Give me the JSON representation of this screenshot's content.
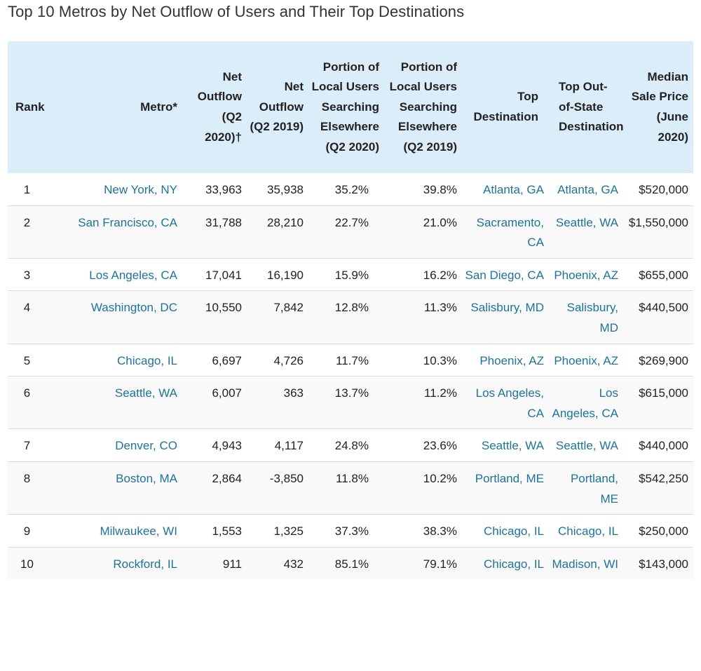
{
  "title": "Top 10 Metros by Net Outflow of Users and Their Top Destinations",
  "colors": {
    "header_bg": "#dbedf8",
    "link": "#1e7399",
    "stripe": "#f9f9f9"
  },
  "headers": {
    "rank": "Rank",
    "metro": "Metro*",
    "net_2020": "Net Outflow (Q2 2020)†",
    "net_2019": "Net Outflow (Q2 2019)",
    "portion_2020": "Portion of Local Users Searching Elsewhere (Q2 2020)",
    "portion_2019": "Portion of Local Users Searching Elsewhere (Q2 2019)",
    "top_dest": "Top Destination",
    "top_oos": "Top Out-of-State Destination",
    "price": "Median Sale Price (June 2020)"
  },
  "rows": [
    {
      "rank": "1",
      "metro": "New York, NY",
      "net_2020": "33,963",
      "net_2019": "35,938",
      "portion_2020": "35.2%",
      "portion_2019": "39.8%",
      "top_dest": "Atlanta, GA",
      "top_oos": "Atlanta, GA",
      "price": "$520,000"
    },
    {
      "rank": "2",
      "metro": "San Francisco, CA",
      "net_2020": "31,788",
      "net_2019": "28,210",
      "portion_2020": "22.7%",
      "portion_2019": "21.0%",
      "top_dest": "Sacramento, CA",
      "top_oos": "Seattle, WA",
      "price": "$1,550,000"
    },
    {
      "rank": "3",
      "metro": "Los Angeles, CA",
      "net_2020": "17,041",
      "net_2019": "16,190",
      "portion_2020": "15.9%",
      "portion_2019": "16.2%",
      "top_dest": "San Diego, CA",
      "top_oos": "Phoenix, AZ",
      "price": "$655,000"
    },
    {
      "rank": "4",
      "metro": "Washington, DC",
      "net_2020": "10,550",
      "net_2019": "7,842",
      "portion_2020": "12.8%",
      "portion_2019": "11.3%",
      "top_dest": "Salisbury, MD",
      "top_oos": "Salisbury, MD",
      "price": "$440,500"
    },
    {
      "rank": "5",
      "metro": "Chicago, IL",
      "net_2020": "6,697",
      "net_2019": "4,726",
      "portion_2020": "11.7%",
      "portion_2019": "10.3%",
      "top_dest": "Phoenix, AZ",
      "top_oos": "Phoenix, AZ",
      "price": "$269,900"
    },
    {
      "rank": "6",
      "metro": "Seattle, WA",
      "net_2020": "6,007",
      "net_2019": "363",
      "portion_2020": "13.7%",
      "portion_2019": "11.2%",
      "top_dest": "Los Angeles, CA",
      "top_oos": "Los Angeles, CA",
      "price": "$615,000"
    },
    {
      "rank": "7",
      "metro": "Denver, CO",
      "net_2020": "4,943",
      "net_2019": "4,117",
      "portion_2020": "24.8%",
      "portion_2019": "23.6%",
      "top_dest": "Seattle, WA",
      "top_oos": "Seattle, WA",
      "price": "$440,000"
    },
    {
      "rank": "8",
      "metro": "Boston, MA",
      "net_2020": "2,864",
      "net_2019": "-3,850",
      "portion_2020": "11.8%",
      "portion_2019": "10.2%",
      "top_dest": "Portland, ME",
      "top_oos": "Portland, ME",
      "price": "$542,250"
    },
    {
      "rank": "9",
      "metro": "Milwaukee, WI",
      "net_2020": "1,553",
      "net_2019": "1,325",
      "portion_2020": "37.3%",
      "portion_2019": "38.3%",
      "top_dest": "Chicago, IL",
      "top_oos": "Chicago, IL",
      "price": "$250,000"
    },
    {
      "rank": "10",
      "metro": "Rockford, IL",
      "net_2020": "911",
      "net_2019": "432",
      "portion_2020": "85.1%",
      "portion_2019": "79.1%",
      "top_dest": "Chicago, IL",
      "top_oos": "Madison, WI",
      "price": "$143,000"
    }
  ]
}
